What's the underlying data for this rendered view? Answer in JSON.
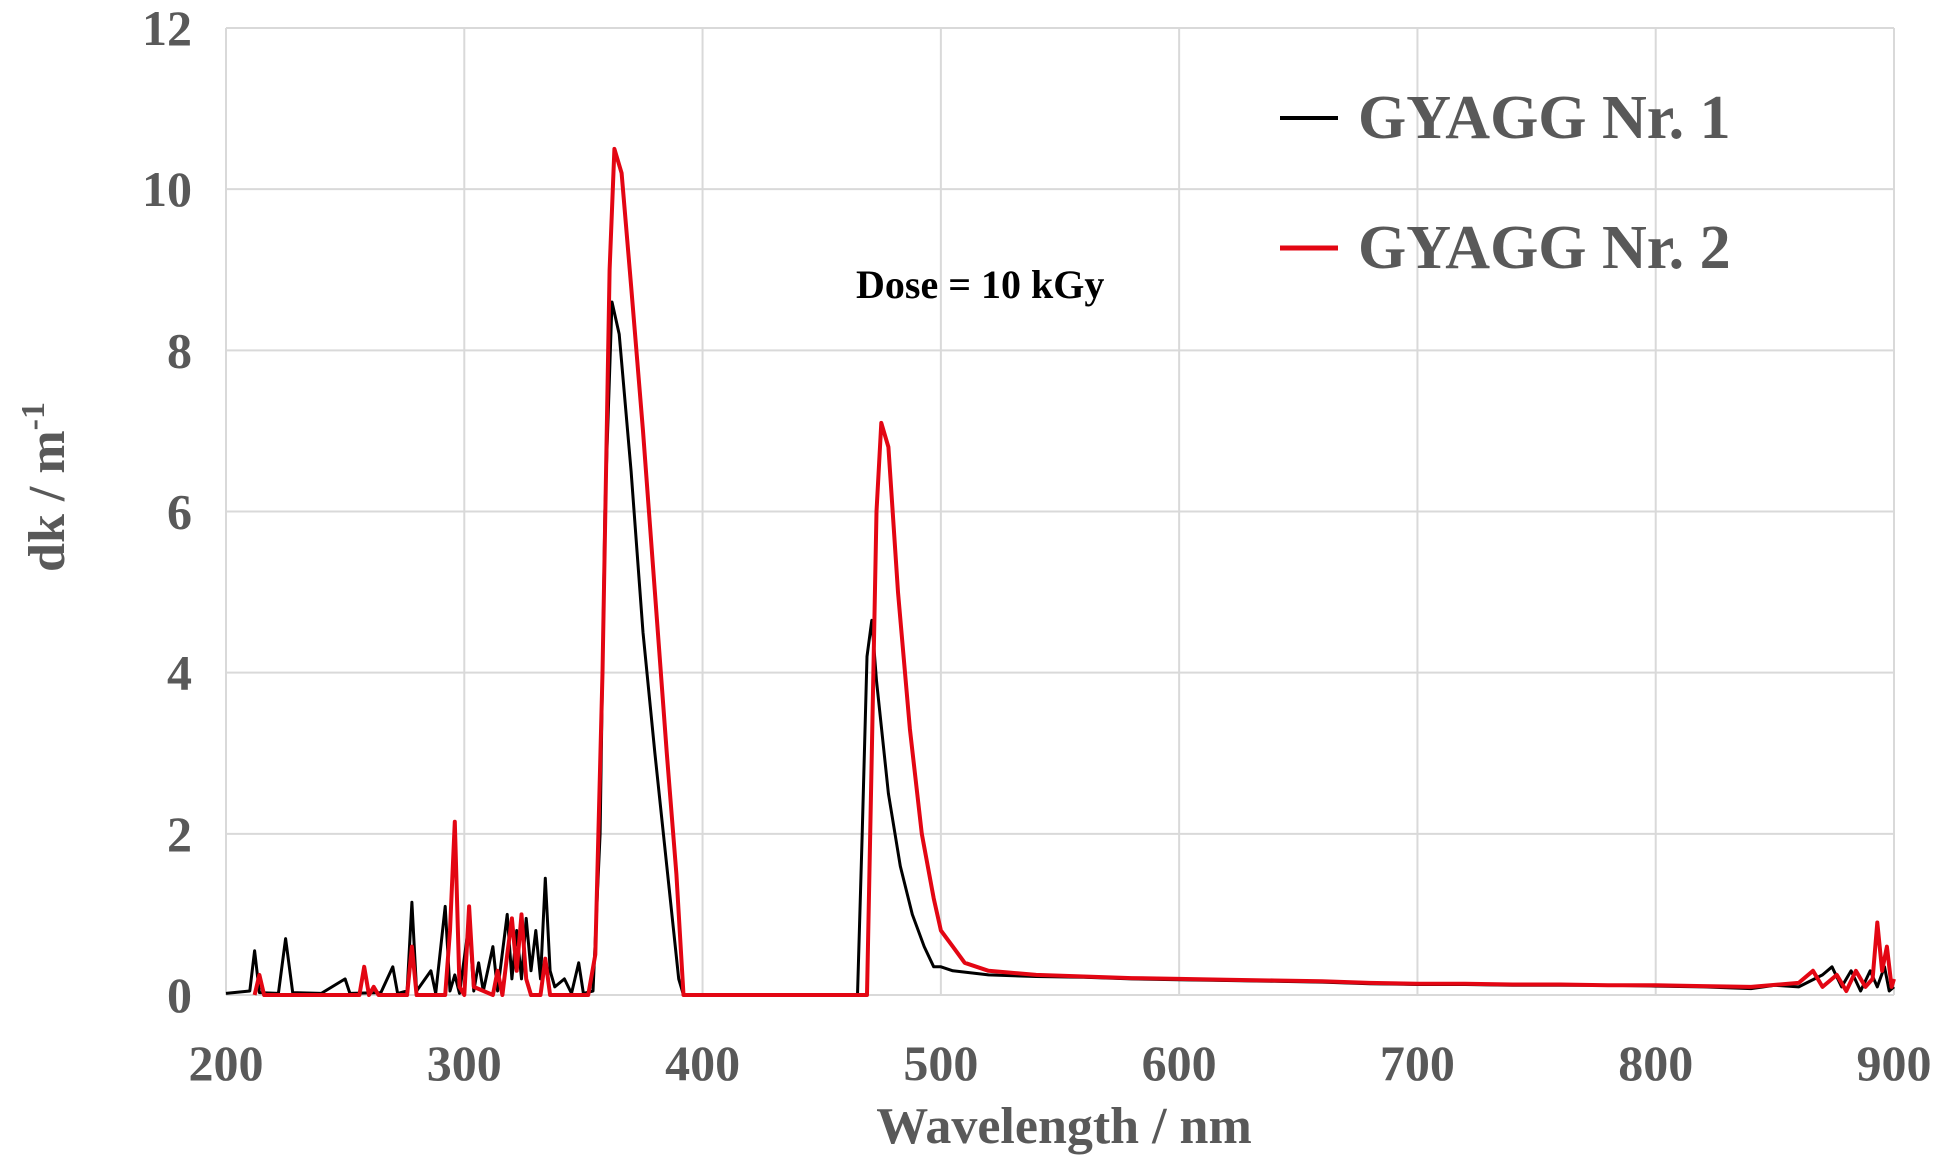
{
  "chart_data": {
    "type": "line",
    "title": "",
    "xlabel": "Wavelength / nm",
    "ylabel_main": "dk / m",
    "ylabel_sup": "-1",
    "xlim": [
      200,
      900
    ],
    "ylim": [
      0,
      12
    ],
    "xticks": [
      "200",
      "300",
      "400",
      "500",
      "600",
      "700",
      "800",
      "900"
    ],
    "yticks": [
      "0",
      "2",
      "4",
      "6",
      "8",
      "10",
      "12"
    ],
    "grid": true,
    "legend_position": "top-right",
    "annotation": "Dose  = 10 kGy",
    "series": [
      {
        "name": "GYAGG Nr. 1",
        "color": "#000000",
        "points": [
          [
            200,
            0.02
          ],
          [
            210,
            0.05
          ],
          [
            212,
            0.55
          ],
          [
            214,
            0.03
          ],
          [
            222,
            0.02
          ],
          [
            225,
            0.7
          ],
          [
            228,
            0.03
          ],
          [
            240,
            0.02
          ],
          [
            250,
            0.2
          ],
          [
            252,
            0.02
          ],
          [
            265,
            0.03
          ],
          [
            270,
            0.35
          ],
          [
            272,
            0.02
          ],
          [
            276,
            0.05
          ],
          [
            278,
            1.15
          ],
          [
            280,
            0.05
          ],
          [
            286,
            0.3
          ],
          [
            288,
            0.02
          ],
          [
            292,
            1.1
          ],
          [
            294,
            0.05
          ],
          [
            296,
            0.25
          ],
          [
            298,
            0.02
          ],
          [
            302,
            0.9
          ],
          [
            304,
            0.05
          ],
          [
            306,
            0.4
          ],
          [
            308,
            0.05
          ],
          [
            312,
            0.6
          ],
          [
            314,
            0.05
          ],
          [
            318,
            1.0
          ],
          [
            320,
            0.2
          ],
          [
            322,
            0.8
          ],
          [
            324,
            0.2
          ],
          [
            326,
            0.95
          ],
          [
            328,
            0.3
          ],
          [
            330,
            0.8
          ],
          [
            332,
            0.2
          ],
          [
            334,
            1.45
          ],
          [
            336,
            0.3
          ],
          [
            338,
            0.1
          ],
          [
            342,
            0.2
          ],
          [
            345,
            0.02
          ],
          [
            348,
            0.4
          ],
          [
            350,
            0.02
          ],
          [
            354,
            0.05
          ],
          [
            357,
            2.0
          ],
          [
            359,
            6.0
          ],
          [
            362,
            8.6
          ],
          [
            365,
            8.2
          ],
          [
            370,
            6.5
          ],
          [
            375,
            4.5
          ],
          [
            380,
            3.0
          ],
          [
            385,
            1.6
          ],
          [
            390,
            0.2
          ],
          [
            392,
            0.0
          ],
          [
            465,
            0.0
          ],
          [
            467,
            2.0
          ],
          [
            469,
            4.2
          ],
          [
            471,
            4.65
          ],
          [
            473,
            3.9
          ],
          [
            478,
            2.5
          ],
          [
            483,
            1.6
          ],
          [
            488,
            1.0
          ],
          [
            493,
            0.6
          ],
          [
            497,
            0.35
          ],
          [
            500,
            0.35
          ],
          [
            505,
            0.3
          ],
          [
            520,
            0.25
          ],
          [
            540,
            0.23
          ],
          [
            560,
            0.22
          ],
          [
            580,
            0.2
          ],
          [
            600,
            0.19
          ],
          [
            620,
            0.18
          ],
          [
            640,
            0.17
          ],
          [
            660,
            0.16
          ],
          [
            680,
            0.14
          ],
          [
            700,
            0.13
          ],
          [
            720,
            0.13
          ],
          [
            740,
            0.12
          ],
          [
            760,
            0.12
          ],
          [
            780,
            0.12
          ],
          [
            800,
            0.11
          ],
          [
            820,
            0.1
          ],
          [
            840,
            0.08
          ],
          [
            850,
            0.12
          ],
          [
            860,
            0.1
          ],
          [
            870,
            0.25
          ],
          [
            874,
            0.35
          ],
          [
            878,
            0.1
          ],
          [
            882,
            0.3
          ],
          [
            886,
            0.05
          ],
          [
            890,
            0.3
          ],
          [
            893,
            0.1
          ],
          [
            896,
            0.35
          ],
          [
            898,
            0.05
          ],
          [
            900,
            0.1
          ]
        ]
      },
      {
        "name": "GYAGG Nr. 2",
        "color": "#e30613",
        "points": [
          [
            212,
            0.0
          ],
          [
            214,
            0.25
          ],
          [
            216,
            0.0
          ],
          [
            256,
            0.0
          ],
          [
            258,
            0.35
          ],
          [
            260,
            0.0
          ],
          [
            262,
            0.1
          ],
          [
            264,
            0.0
          ],
          [
            276,
            0.0
          ],
          [
            278,
            0.6
          ],
          [
            280,
            0.0
          ],
          [
            292,
            0.0
          ],
          [
            294,
            0.8
          ],
          [
            296,
            2.15
          ],
          [
            298,
            0.1
          ],
          [
            300,
            0.0
          ],
          [
            302,
            1.1
          ],
          [
            304,
            0.1
          ],
          [
            312,
            0.0
          ],
          [
            314,
            0.3
          ],
          [
            316,
            0.0
          ],
          [
            318,
            0.5
          ],
          [
            320,
            0.95
          ],
          [
            322,
            0.3
          ],
          [
            324,
            1.0
          ],
          [
            326,
            0.2
          ],
          [
            328,
            0.0
          ],
          [
            332,
            0.0
          ],
          [
            334,
            0.45
          ],
          [
            336,
            0.0
          ],
          [
            352,
            0.0
          ],
          [
            355,
            0.5
          ],
          [
            358,
            4.0
          ],
          [
            361,
            9.0
          ],
          [
            363,
            10.5
          ],
          [
            366,
            10.2
          ],
          [
            370,
            8.8
          ],
          [
            375,
            7.0
          ],
          [
            380,
            5.0
          ],
          [
            385,
            3.0
          ],
          [
            389,
            1.5
          ],
          [
            392,
            0.0
          ],
          [
            469,
            0.0
          ],
          [
            471,
            3.0
          ],
          [
            473,
            6.0
          ],
          [
            475,
            7.1
          ],
          [
            478,
            6.8
          ],
          [
            482,
            5.0
          ],
          [
            487,
            3.3
          ],
          [
            492,
            2.0
          ],
          [
            497,
            1.2
          ],
          [
            500,
            0.8
          ],
          [
            505,
            0.6
          ],
          [
            510,
            0.4
          ],
          [
            520,
            0.3
          ],
          [
            540,
            0.25
          ],
          [
            560,
            0.23
          ],
          [
            580,
            0.21
          ],
          [
            600,
            0.2
          ],
          [
            620,
            0.19
          ],
          [
            640,
            0.18
          ],
          [
            660,
            0.17
          ],
          [
            680,
            0.15
          ],
          [
            700,
            0.14
          ],
          [
            720,
            0.14
          ],
          [
            740,
            0.13
          ],
          [
            760,
            0.13
          ],
          [
            780,
            0.12
          ],
          [
            800,
            0.12
          ],
          [
            820,
            0.11
          ],
          [
            840,
            0.1
          ],
          [
            860,
            0.15
          ],
          [
            866,
            0.3
          ],
          [
            870,
            0.1
          ],
          [
            876,
            0.25
          ],
          [
            880,
            0.05
          ],
          [
            884,
            0.3
          ],
          [
            888,
            0.1
          ],
          [
            891,
            0.2
          ],
          [
            893,
            0.9
          ],
          [
            895,
            0.3
          ],
          [
            897,
            0.6
          ],
          [
            899,
            0.1
          ],
          [
            900,
            0.2
          ]
        ]
      }
    ]
  }
}
